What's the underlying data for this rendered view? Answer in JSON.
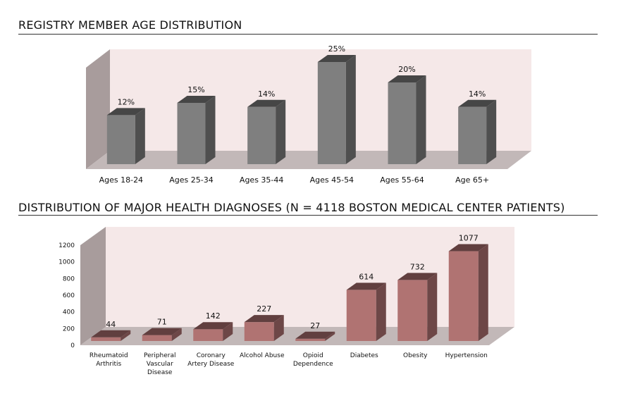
{
  "sections": {
    "age": {
      "title": "REGISTRY MEMBER AGE DISTRIBUTION"
    },
    "diagnoses": {
      "title": "DISTRIBUTION OF MAJOR HEALTH DIAGNOSES (N = 4118 BOSTON MEDICAL CENTER PATIENTS)"
    }
  },
  "colors": {
    "age_bar": "#7f7f7f",
    "diag_bar": "#b07372",
    "wall_back": "#f5e8e8",
    "wall_side": "#a89c9c",
    "floor": "#c2b8b8"
  },
  "chart_data": [
    {
      "type": "bar",
      "three_d": true,
      "title": "REGISTRY MEMBER AGE DISTRIBUTION",
      "categories": [
        "Ages 18-24",
        "Ages 25-34",
        "Ages 35-44",
        "Ages 45-54",
        "Ages 55-64",
        "Age 65+"
      ],
      "values": [
        12,
        15,
        14,
        25,
        20,
        14
      ],
      "value_labels": [
        "12%",
        "15%",
        "14%",
        "25%",
        "20%",
        "14%"
      ],
      "unit": "%",
      "grid": false,
      "legend": "none"
    },
    {
      "type": "bar",
      "three_d": true,
      "title": "DISTRIBUTION OF MAJOR HEALTH DIAGNOSES (N = 4118 BOSTON MEDICAL CENTER PATIENTS)",
      "categories": [
        [
          "Rheumatoid",
          "Arthritis"
        ],
        [
          "Peripheral",
          "Vascular",
          "Disease"
        ],
        [
          "Coronary",
          "Artery Disease"
        ],
        [
          "Alcohol Abuse"
        ],
        [
          "Opioid",
          "Dependence"
        ],
        [
          "Diabetes"
        ],
        [
          "Obesity"
        ],
        [
          "Hypertension"
        ]
      ],
      "values": [
        44,
        71,
        142,
        227,
        27,
        614,
        732,
        1077
      ],
      "value_labels": [
        "44",
        "71",
        "142",
        "227",
        "27",
        "614",
        "732",
        "1077"
      ],
      "y_ticks": [
        "0",
        "200",
        "400",
        "600",
        "800",
        "1000",
        "1200"
      ],
      "ylim": [
        0,
        1200
      ],
      "grid": false,
      "legend": "none"
    }
  ]
}
